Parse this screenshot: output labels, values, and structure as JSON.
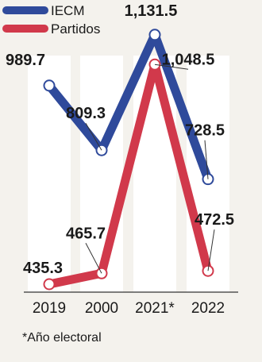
{
  "chart_data": {
    "type": "line",
    "categories": [
      "2019",
      "2000",
      "2021*",
      "2022"
    ],
    "series": [
      {
        "name": "IECM",
        "values": [
          989.7,
          809.3,
          1131.5,
          728.5
        ],
        "labels": [
          "989.7",
          "809.3",
          "1,131.5",
          "728.5"
        ],
        "color": "#2f4a9b"
      },
      {
        "name": "Partidos",
        "values": [
          435.3,
          465.7,
          1048.5,
          472.5
        ],
        "labels": [
          "435.3",
          "465.7",
          "1,048.5",
          "472.5"
        ],
        "color": "#d1394b"
      }
    ],
    "footnote": "*Año electoral",
    "legend_position": "top-left",
    "grid": false
  }
}
